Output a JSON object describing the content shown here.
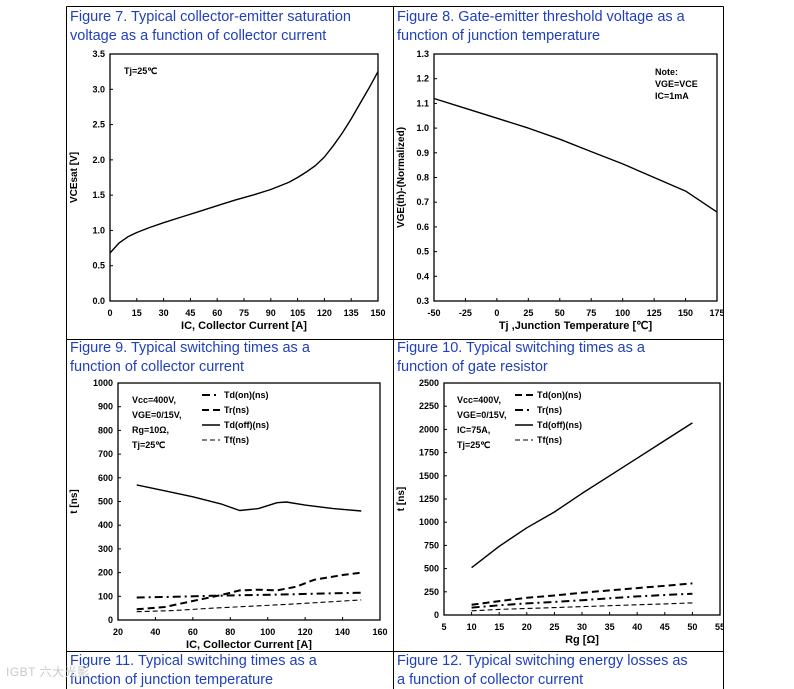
{
  "captions": {
    "fig7": {
      "line1": "Figure 7. Typical collector-emitter saturation",
      "line2": "voltage as a function of collector current"
    },
    "fig8": {
      "line1": "Figure 8. Gate-emitter threshold voltage as a",
      "line2": "function of junction temperature"
    },
    "fig9": {
      "line1": "Figure 9. Typical switching times as a",
      "line2": "function of collector current"
    },
    "fig10": {
      "line1": "Figure 10. Typical switching times as a",
      "line2": "function of gate resistor"
    },
    "fig11": {
      "line1": "Figure 11. Typical switching times as a",
      "line2": "function of junction temperature"
    },
    "fig12": {
      "line1": "Figure 12. Typical switching energy losses as",
      "line2": "a function of collector current"
    }
  },
  "watermark": "IGBT 六大光影",
  "colors": {
    "caption": "#1f3fbf",
    "curve": "#000000",
    "border": "#000000"
  },
  "chart_data": [
    {
      "id": "fig7",
      "type": "line",
      "title": "Figure 7. Typical collector-emitter saturation voltage as a function of collector current",
      "xlabel": "IC, Collector Current [A]",
      "ylabel": "VCEsat [V]",
      "xlim": [
        0,
        150
      ],
      "ylim": [
        0,
        3.5
      ],
      "xticks": [
        0,
        15,
        30,
        45,
        60,
        75,
        90,
        105,
        120,
        135,
        150
      ],
      "yticks": [
        0.0,
        0.5,
        1.0,
        1.5,
        2.0,
        2.5,
        3.0,
        3.5
      ],
      "ytick_labels": [
        "0.0",
        "0.5",
        "1.0",
        "1.5",
        "2.0",
        "2.5",
        "3.0",
        "3.5"
      ],
      "annotations": [
        "Tj=25℃"
      ],
      "series": [
        {
          "name": "Tj=25℃",
          "style": "solid",
          "x": [
            0,
            5,
            10,
            15,
            22,
            30,
            40,
            50,
            60,
            70,
            80,
            90,
            100,
            105,
            110,
            115,
            120,
            125,
            130,
            135,
            140,
            145,
            150
          ],
          "y": [
            0.68,
            0.82,
            0.91,
            0.97,
            1.04,
            1.11,
            1.19,
            1.27,
            1.35,
            1.43,
            1.5,
            1.58,
            1.68,
            1.75,
            1.83,
            1.92,
            2.04,
            2.2,
            2.38,
            2.58,
            2.8,
            3.02,
            3.25
          ]
        }
      ]
    },
    {
      "id": "fig8",
      "type": "line",
      "title": "Figure 8. Gate-emitter threshold voltage as a function of junction temperature",
      "xlabel": "Tj ,Junction Temperature [℃]",
      "ylabel": "VGE(th)-(Normalized)",
      "xlim": [
        -50,
        175
      ],
      "ylim": [
        0.3,
        1.3
      ],
      "xticks": [
        -50,
        -25,
        0,
        25,
        50,
        75,
        100,
        125,
        150,
        175
      ],
      "yticks": [
        0.3,
        0.4,
        0.5,
        0.6,
        0.7,
        0.8,
        0.9,
        1.0,
        1.1,
        1.2,
        1.3
      ],
      "ytick_labels": [
        "0.3",
        "0.4",
        "0.5",
        "0.6",
        "0.7",
        "0.8",
        "0.9",
        "1.0",
        "1.1",
        "1.2",
        "1.3"
      ],
      "annotations": [
        "Note:",
        "VGE=VCE",
        "IC=1mA"
      ],
      "series": [
        {
          "name": "VGE(th)",
          "style": "solid",
          "x": [
            -50,
            -25,
            0,
            25,
            50,
            75,
            100,
            125,
            150,
            175
          ],
          "y": [
            1.12,
            1.08,
            1.04,
            1.0,
            0.955,
            0.905,
            0.855,
            0.8,
            0.745,
            0.66
          ]
        }
      ]
    },
    {
      "id": "fig9",
      "type": "line",
      "title": "Figure 9. Typical switching times as a function of collector current",
      "xlabel": "IC, Collector Current [A]",
      "ylabel": "t [ns]",
      "xlim": [
        20,
        160
      ],
      "ylim": [
        0,
        1000
      ],
      "xticks": [
        20,
        40,
        60,
        80,
        100,
        120,
        140,
        160
      ],
      "yticks": [
        0,
        100,
        200,
        300,
        400,
        500,
        600,
        700,
        800,
        900,
        1000
      ],
      "ytick_labels": [
        "0",
        "100",
        "200",
        "300",
        "400",
        "500",
        "600",
        "700",
        "800",
        "900",
        "1000"
      ],
      "annotations": [
        "Vcc=400V,",
        "VGE=0/15V,",
        "Rg=10Ω,",
        "Tj=25℃"
      ],
      "series": [
        {
          "name": "Td(on)(ns)",
          "style": "dashdot",
          "x": [
            30,
            50,
            70,
            90,
            110,
            130,
            150
          ],
          "y": [
            95,
            98,
            102,
            105,
            108,
            112,
            115
          ]
        },
        {
          "name": "Tr(ns)",
          "style": "dashed",
          "x": [
            30,
            45,
            60,
            75,
            85,
            95,
            105,
            115,
            125,
            140,
            150
          ],
          "y": [
            45,
            55,
            80,
            105,
            125,
            128,
            125,
            140,
            170,
            190,
            200
          ]
        },
        {
          "name": "Td(off)(ns)",
          "style": "solid",
          "x": [
            30,
            45,
            60,
            75,
            85,
            95,
            105,
            110,
            120,
            135,
            150
          ],
          "y": [
            570,
            545,
            520,
            490,
            462,
            470,
            495,
            498,
            485,
            470,
            460
          ]
        },
        {
          "name": "Tf(ns)",
          "style": "hollowdash",
          "x": [
            30,
            50,
            70,
            90,
            110,
            130,
            150
          ],
          "y": [
            35,
            40,
            50,
            58,
            66,
            75,
            85
          ]
        }
      ]
    },
    {
      "id": "fig10",
      "type": "line",
      "title": "Figure 10. Typical switching times as a function of gate resistor",
      "xlabel": "Rg [Ω]",
      "ylabel": "t [ns]",
      "xlim": [
        5,
        55
      ],
      "ylim": [
        0,
        2500
      ],
      "xticks": [
        5,
        10,
        15,
        20,
        25,
        30,
        35,
        40,
        45,
        50,
        55
      ],
      "yticks": [
        0,
        250,
        500,
        750,
        1000,
        1250,
        1500,
        1750,
        2000,
        2250,
        2500
      ],
      "ytick_labels": [
        "0",
        "250",
        "500",
        "750",
        "1000",
        "1250",
        "1500",
        "1750",
        "2000",
        "2250",
        "2500"
      ],
      "annotations": [
        "Vcc=400V,",
        "VGE=0/15V,",
        "IC=75A,",
        "Tj=25℃"
      ],
      "series": [
        {
          "name": "Td(on)(ns)",
          "style": "dashed",
          "x": [
            10,
            15,
            20,
            25,
            30,
            35,
            40,
            45,
            50
          ],
          "y": [
            110,
            150,
            185,
            210,
            240,
            265,
            290,
            315,
            340
          ]
        },
        {
          "name": "Tr(ns)",
          "style": "dashdot",
          "x": [
            10,
            15,
            20,
            25,
            30,
            35,
            40,
            45,
            50
          ],
          "y": [
            80,
            105,
            125,
            140,
            160,
            180,
            200,
            215,
            230
          ]
        },
        {
          "name": "Td(off)(ns)",
          "style": "solid",
          "x": [
            10,
            15,
            20,
            25,
            30,
            35,
            40,
            45,
            50
          ],
          "y": [
            510,
            740,
            940,
            1110,
            1310,
            1500,
            1690,
            1880,
            2070
          ]
        },
        {
          "name": "Tf(ns)",
          "style": "hollowdash",
          "x": [
            10,
            15,
            20,
            25,
            30,
            35,
            40,
            45,
            50
          ],
          "y": [
            45,
            60,
            70,
            80,
            90,
            100,
            110,
            120,
            130
          ]
        }
      ]
    }
  ]
}
